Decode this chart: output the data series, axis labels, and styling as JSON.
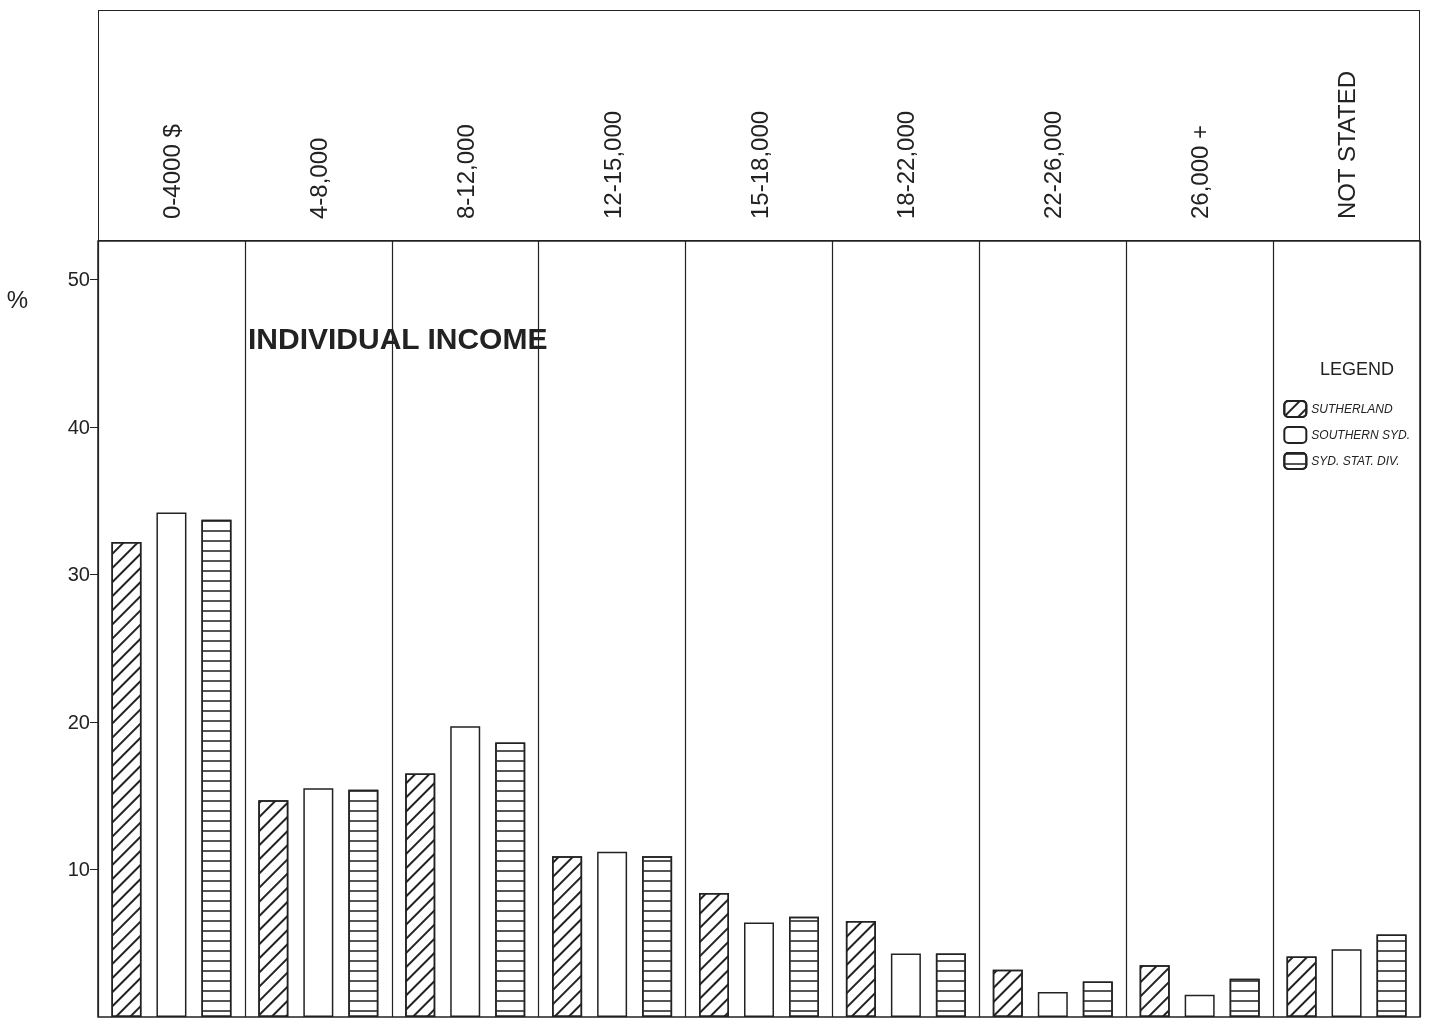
{
  "chart_data": {
    "type": "bar",
    "title": "INDIVIDUAL INCOME",
    "ylabel": "%",
    "legend_title": "LEGEND",
    "categories": [
      "0-4000 $",
      "4-8,000",
      "8-12,000",
      "12-15,000",
      "15-18,000",
      "18-22,000",
      "22-26,000",
      "26,000 +",
      "NOT STATED"
    ],
    "series": [
      {
        "name": "SUTHERLAND",
        "color": "#ffffff",
        "values": [
          32.2,
          14.7,
          16.5,
          10.9,
          8.4,
          6.5,
          3.2,
          3.5,
          4.1
        ]
      },
      {
        "name": "SOUTHERN SYD.",
        "color": "#ffffff",
        "values": [
          34.2,
          15.5,
          19.7,
          11.2,
          6.4,
          4.3,
          1.7,
          1.5,
          4.6
        ]
      },
      {
        "name": "SYD. STAT. DIV.",
        "color": "#ffffff",
        "values": [
          33.7,
          15.4,
          18.6,
          10.9,
          6.8,
          4.3,
          2.4,
          2.6,
          5.6
        ]
      }
    ],
    "ylim": [
      0,
      52.6
    ],
    "yticks": [
      10,
      20,
      30,
      40,
      50
    ],
    "grid": "x",
    "legend": "top right"
  }
}
